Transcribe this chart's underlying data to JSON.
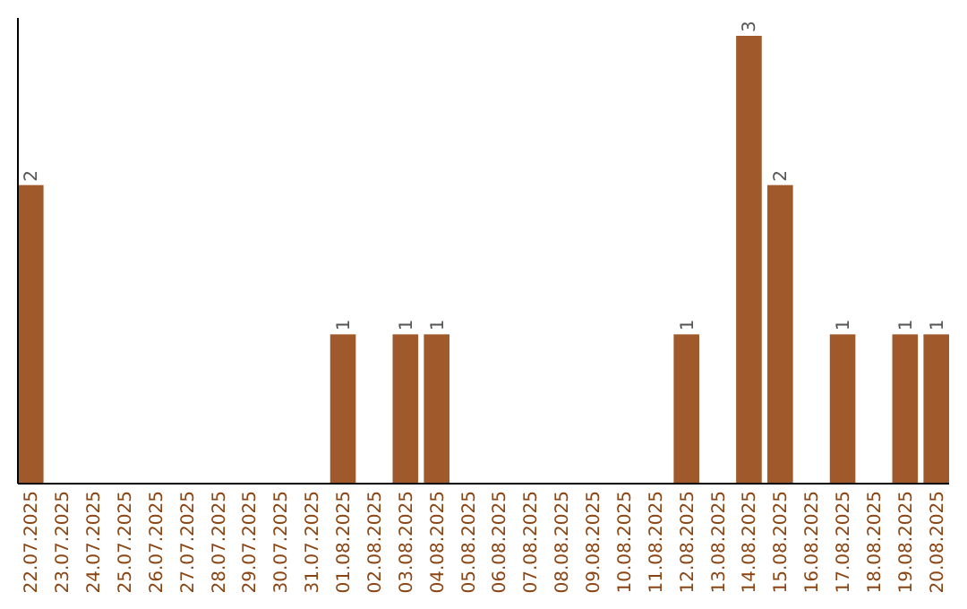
{
  "chart_data": {
    "type": "bar",
    "categories": [
      "22.07.2025",
      "23.07.2025",
      "24.07.2025",
      "25.07.2025",
      "26.07.2025",
      "27.07.2025",
      "28.07.2025",
      "29.07.2025",
      "30.07.2025",
      "31.07.2025",
      "01.08.2025",
      "02.08.2025",
      "03.08.2025",
      "04.08.2025",
      "05.08.2025",
      "06.08.2025",
      "07.08.2025",
      "08.08.2025",
      "09.08.2025",
      "10.08.2025",
      "11.08.2025",
      "12.08.2025",
      "13.08.2025",
      "14.08.2025",
      "15.08.2025",
      "16.08.2025",
      "17.08.2025",
      "18.08.2025",
      "19.08.2025",
      "20.08.2025"
    ],
    "values": [
      2,
      0,
      0,
      0,
      0,
      0,
      0,
      0,
      0,
      0,
      1,
      0,
      1,
      1,
      0,
      0,
      0,
      0,
      0,
      0,
      0,
      1,
      0,
      3,
      2,
      0,
      1,
      0,
      1,
      1
    ],
    "value_labels": [
      "2",
      null,
      null,
      null,
      null,
      null,
      null,
      null,
      null,
      null,
      "1",
      null,
      "1",
      "1",
      null,
      null,
      null,
      null,
      null,
      null,
      null,
      "1",
      null,
      "3",
      "2",
      null,
      "1",
      null,
      "1",
      "1"
    ],
    "color": "#a0592a",
    "tick_labels": "x"
  }
}
